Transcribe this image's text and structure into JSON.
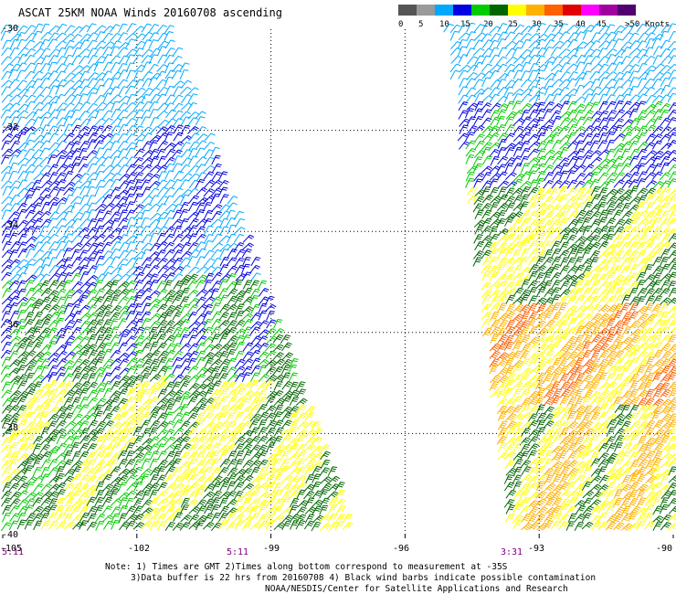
{
  "title": "ASCAT 25KM NOAA Winds 20160708 ascending",
  "legend": {
    "unit": "Knots",
    "items": [
      {
        "label": "0",
        "color": "#555555"
      },
      {
        "label": "5",
        "color": "#9a9a9a"
      },
      {
        "label": "10",
        "color": "#00a8ff"
      },
      {
        "label": "15",
        "color": "#0000e0"
      },
      {
        "label": "20",
        "color": "#00cc00"
      },
      {
        "label": "25",
        "color": "#006600"
      },
      {
        "label": "30",
        "color": "#ffff00"
      },
      {
        "label": "35",
        "color": "#ffb000"
      },
      {
        "label": "40",
        "color": "#ff6000"
      },
      {
        "label": "45",
        "color": "#e00000"
      },
      {
        "label": ">50",
        "color": "#ff00ff"
      },
      {
        "label": "",
        "color": "#a000a0"
      },
      {
        "label": "",
        "color": "#500070"
      }
    ],
    "top_label": ">50"
  },
  "lat_labels": [
    "-30",
    "-32",
    "-34",
    "-36",
    "-38",
    "-40"
  ],
  "lon_labels": [
    "-105",
    "-102",
    "-99",
    "-96",
    "-93",
    "-90"
  ],
  "time_labels": [
    "5:11",
    "5:11",
    "3:31"
  ],
  "notes": {
    "line1": "Note: 1) Times are GMT 2)Times along bottom correspond to measurement at -35S",
    "line2": "3)Data buffer is 22 hrs from 20160708 4) Black wind barbs indicate possible contamination",
    "line3": "NOAA/NESDIS/Center for Satellite Applications and Research"
  },
  "map": {
    "lon_range": [
      -105,
      -90
    ],
    "lat_range": [
      -40,
      -30
    ],
    "grid_lons": [
      -102,
      -99,
      -96,
      -93
    ],
    "grid_lats": [
      -32,
      -34,
      -36,
      -38
    ]
  }
}
